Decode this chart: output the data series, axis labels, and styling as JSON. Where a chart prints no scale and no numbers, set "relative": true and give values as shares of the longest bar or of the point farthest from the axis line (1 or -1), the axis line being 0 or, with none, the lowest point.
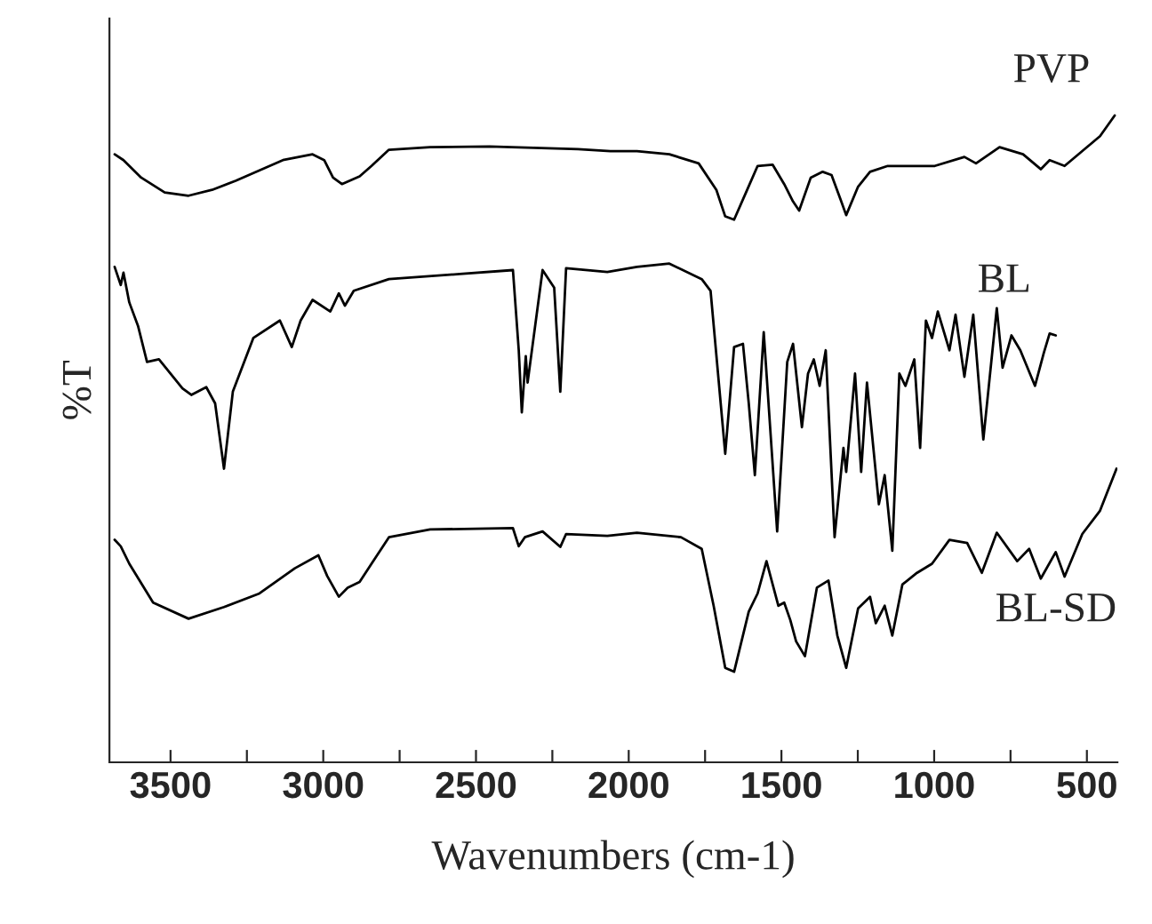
{
  "chart_data": {
    "type": "line",
    "relative": true,
    "xlabel": "Wavenumbers (cm-1)",
    "ylabel": "%T",
    "xlim": [
      3700,
      400
    ],
    "xticks": [
      3500,
      {
        "value": 3250,
        "label": null
      },
      3000,
      {
        "value": 2750,
        "label": null
      },
      2500,
      {
        "value": 2250,
        "label": null
      },
      2000,
      {
        "value": 1750,
        "label": null
      },
      1500,
      {
        "value": 1250,
        "label": null
      },
      1000,
      {
        "value": 750,
        "label": null
      },
      500
    ],
    "series": [
      {
        "name": "PVP",
        "color": "#000000",
        "x": [
          3683,
          3654,
          3596,
          3519,
          3441,
          3364,
          3287,
          3132,
          3035,
          2997,
          2968,
          2939,
          2881,
          2842,
          2785,
          2650,
          2456,
          2166,
          2060,
          1973,
          1867,
          1771,
          1713,
          1684,
          1655,
          1616,
          1578,
          1529,
          1491,
          1462,
          1442,
          1404,
          1365,
          1336,
          1307,
          1288,
          1249,
          1210,
          1152,
          1094,
          998,
          901,
          863,
          786,
          709,
          651,
          622,
          573,
          515,
          457,
          409
        ],
        "values": [
          0.94,
          0.931,
          0.904,
          0.881,
          0.876,
          0.885,
          0.899,
          0.931,
          0.94,
          0.931,
          0.904,
          0.894,
          0.906,
          0.922,
          0.947,
          0.951,
          0.952,
          0.948,
          0.945,
          0.945,
          0.94,
          0.926,
          0.885,
          0.844,
          0.839,
          0.881,
          0.922,
          0.924,
          0.894,
          0.867,
          0.853,
          0.904,
          0.913,
          0.908,
          0.871,
          0.846,
          0.89,
          0.913,
          0.922,
          0.922,
          0.922,
          0.936,
          0.926,
          0.951,
          0.94,
          0.917,
          0.931,
          0.922,
          0.945,
          0.968,
          1.0
        ]
      },
      {
        "name": "BL",
        "color": "#000000",
        "x": [
          3683,
          3663,
          3654,
          3635,
          3606,
          3577,
          3538,
          3461,
          3432,
          3383,
          3354,
          3325,
          3296,
          3229,
          3142,
          3103,
          3074,
          3035,
          2977,
          2949,
          2929,
          2900,
          2785,
          2553,
          2379,
          2360,
          2350,
          2337,
          2331,
          2282,
          2244,
          2224,
          2205,
          2070,
          1973,
          1867,
          1761,
          1732,
          1684,
          1655,
          1626,
          1607,
          1587,
          1558,
          1514,
          1481,
          1462,
          1433,
          1413,
          1394,
          1375,
          1355,
          1326,
          1297,
          1288,
          1259,
          1239,
          1220,
          1181,
          1162,
          1137,
          1114,
          1094,
          1065,
          1046,
          1027,
          1007,
          988,
          950,
          930,
          901,
          872,
          839,
          795,
          776,
          747,
          718,
          670,
          641,
          622,
          602
        ],
        "values": [
          0.766,
          0.738,
          0.757,
          0.711,
          0.674,
          0.619,
          0.623,
          0.578,
          0.568,
          0.58,
          0.555,
          0.454,
          0.573,
          0.656,
          0.683,
          0.642,
          0.683,
          0.715,
          0.697,
          0.725,
          0.706,
          0.729,
          0.747,
          0.755,
          0.761,
          0.637,
          0.541,
          0.628,
          0.587,
          0.761,
          0.734,
          0.573,
          0.764,
          0.758,
          0.766,
          0.771,
          0.747,
          0.729,
          0.477,
          0.642,
          0.647,
          0.555,
          0.444,
          0.665,
          0.357,
          0.619,
          0.647,
          0.518,
          0.601,
          0.623,
          0.582,
          0.637,
          0.348,
          0.486,
          0.449,
          0.601,
          0.449,
          0.587,
          0.399,
          0.444,
          0.327,
          0.601,
          0.582,
          0.623,
          0.486,
          0.683,
          0.656,
          0.697,
          0.637,
          0.692,
          0.596,
          0.692,
          0.499,
          0.702,
          0.61,
          0.66,
          0.637,
          0.582,
          0.633,
          0.663,
          0.66
        ]
      },
      {
        "name": "BL-SD",
        "color": "#000000",
        "x": [
          3683,
          3663,
          3635,
          3557,
          3441,
          3325,
          3209,
          3093,
          3016,
          2987,
          2949,
          2920,
          2881,
          2842,
          2785,
          2650,
          2379,
          2360,
          2340,
          2282,
          2224,
          2205,
          2070,
          1973,
          1829,
          1761,
          1722,
          1684,
          1655,
          1607,
          1578,
          1549,
          1510,
          1491,
          1471,
          1452,
          1423,
          1384,
          1346,
          1317,
          1288,
          1249,
          1210,
          1191,
          1162,
          1137,
          1104,
          1056,
          1007,
          950,
          892,
          844,
          795,
          728,
          689,
          651,
          602,
          573,
          515,
          457,
          403
        ],
        "values": [
          0.344,
          0.334,
          0.307,
          0.247,
          0.222,
          0.24,
          0.261,
          0.3,
          0.32,
          0.288,
          0.256,
          0.27,
          0.279,
          0.307,
          0.348,
          0.36,
          0.362,
          0.334,
          0.348,
          0.357,
          0.333,
          0.353,
          0.35,
          0.355,
          0.348,
          0.33,
          0.242,
          0.146,
          0.14,
          0.233,
          0.261,
          0.311,
          0.242,
          0.247,
          0.22,
          0.187,
          0.164,
          0.27,
          0.281,
          0.196,
          0.146,
          0.238,
          0.256,
          0.215,
          0.242,
          0.196,
          0.275,
          0.293,
          0.307,
          0.344,
          0.339,
          0.293,
          0.355,
          0.311,
          0.33,
          0.284,
          0.325,
          0.287,
          0.353,
          0.389,
          0.454
        ]
      }
    ]
  }
}
